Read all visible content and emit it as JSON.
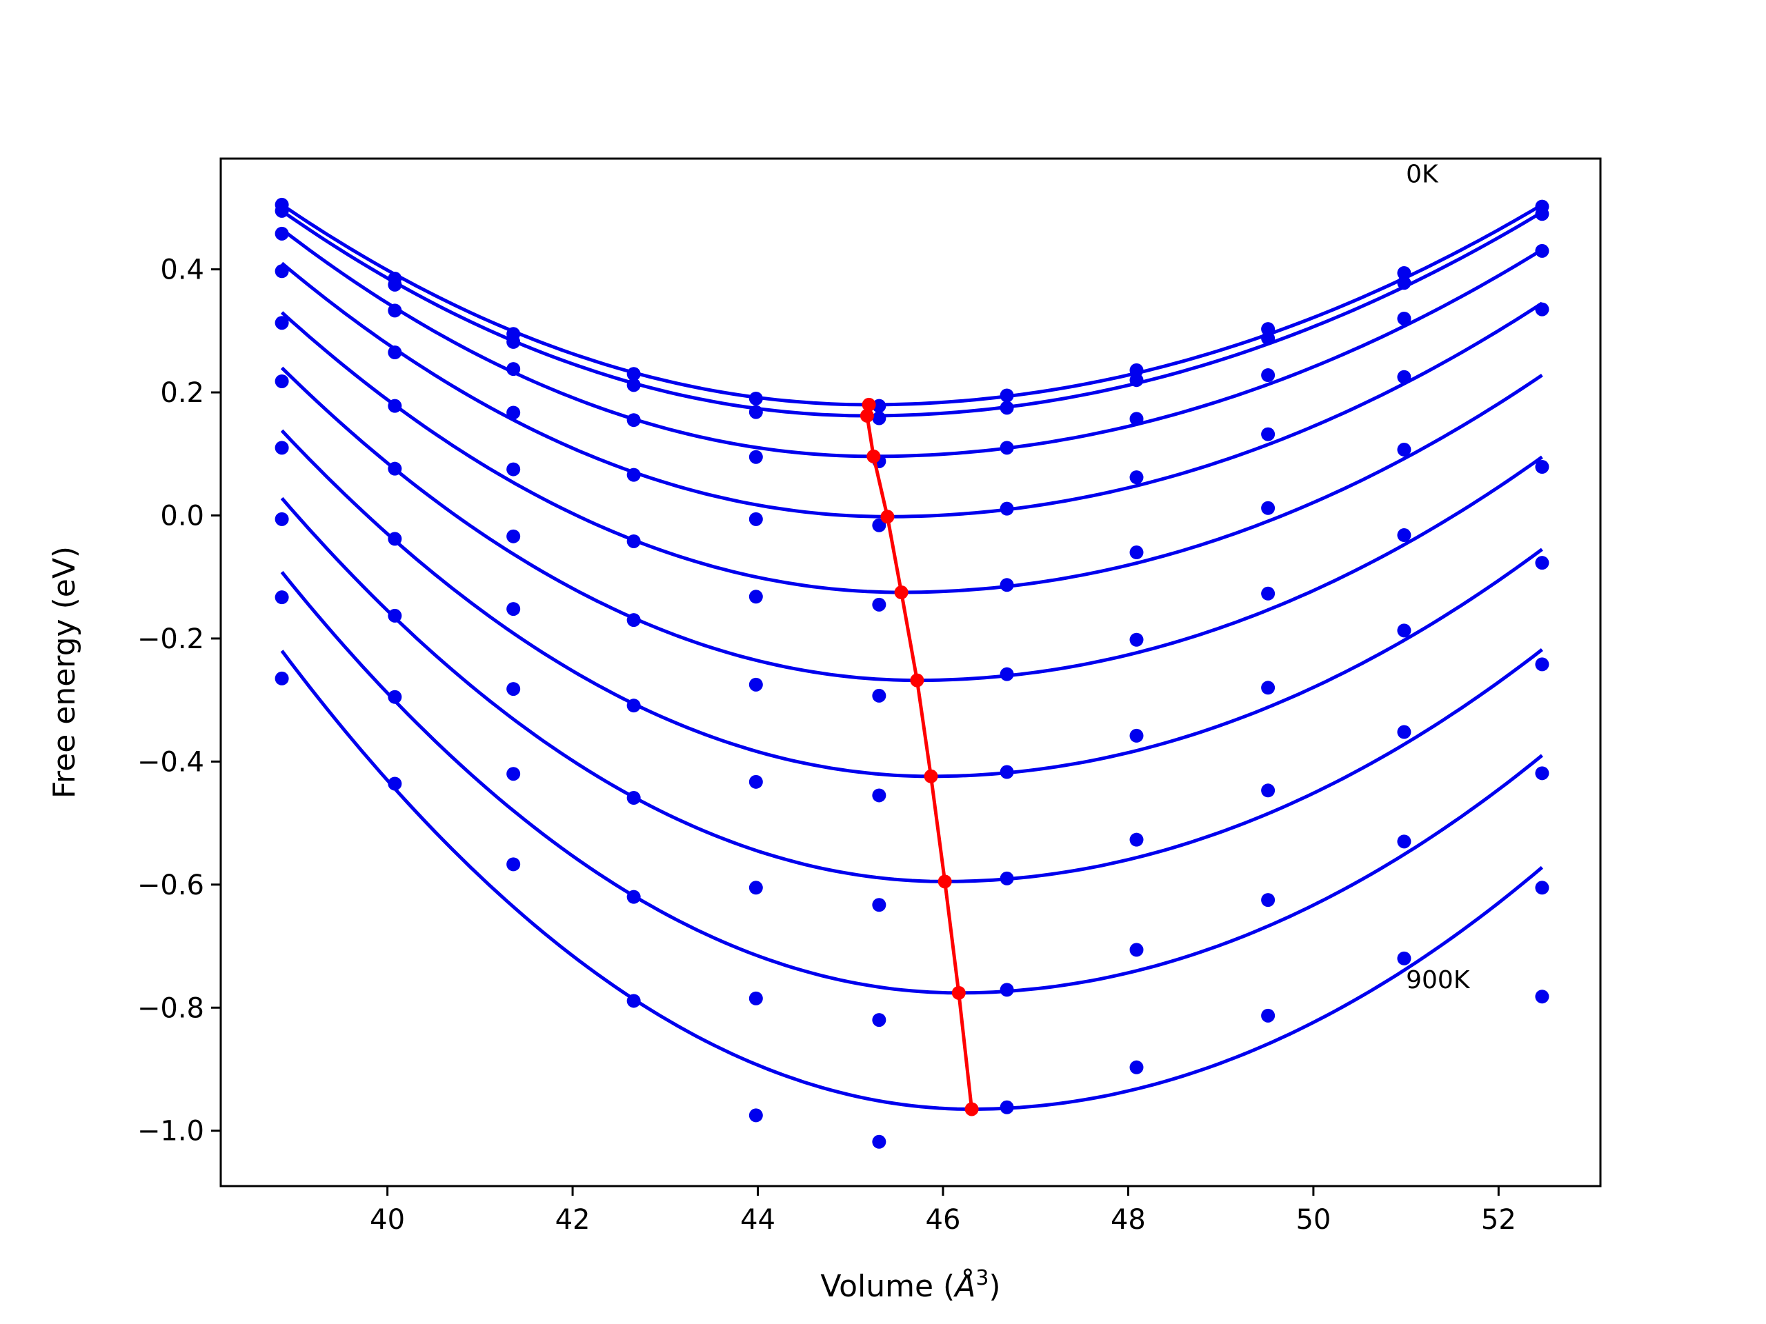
{
  "chart_data": {
    "type": "scatter",
    "title": "",
    "xlabel_prefix": "Volume (",
    "xlabel_unit": "Å",
    "xlabel_sup": "3",
    "xlabel_suffix": ")",
    "ylabel": "Free energy (eV)",
    "xlim": [
      38.2,
      53.1
    ],
    "ylim": [
      -1.09,
      0.58
    ],
    "x_ticks": [
      40,
      42,
      44,
      46,
      48,
      50,
      52
    ],
    "y_ticks": [
      -1.0,
      -0.8,
      -0.6,
      -0.4,
      -0.2,
      0.0,
      0.2,
      0.4
    ],
    "y_tick_labels": [
      "−1.0",
      "−0.8",
      "−0.6",
      "−0.4",
      "−0.2",
      "0.0",
      "0.2",
      "0.4"
    ],
    "grid": false,
    "annotations": [
      {
        "text": "0K",
        "x": 51.0,
        "y": 0.555
      },
      {
        "text": "900K",
        "x": 51.0,
        "y": -0.755
      }
    ],
    "volumes": [
      38.86,
      40.08,
      41.36,
      42.66,
      43.98,
      45.31,
      46.69,
      48.09,
      49.51,
      50.98,
      52.47
    ],
    "curve_color": "#0000ee",
    "point_color": "#0000ee",
    "minimum_color": "#ff0000",
    "series": [
      {
        "points": [
          0.505,
          0.385,
          0.295,
          0.23,
          0.19,
          0.178,
          0.195,
          0.236,
          0.303,
          0.394,
          0.502
        ],
        "min_v": 45.2,
        "min_e": 0.18,
        "curve_left": 0.505,
        "curve_right": 0.505
      },
      {
        "points": [
          0.495,
          0.375,
          0.282,
          0.212,
          0.168,
          0.158,
          0.175,
          0.22,
          0.288,
          0.378,
          0.49
        ],
        "min_v": 45.18,
        "min_e": 0.162,
        "curve_left": 0.495,
        "curve_right": 0.493
      },
      {
        "points": [
          0.458,
          0.333,
          0.238,
          0.155,
          0.095,
          0.088,
          0.11,
          0.157,
          0.228,
          0.32,
          0.43
        ],
        "min_v": 45.25,
        "min_e": 0.096,
        "curve_left": 0.465,
        "curve_right": 0.432
      },
      {
        "points": [
          0.397,
          0.265,
          0.167,
          0.066,
          -0.006,
          -0.016,
          0.011,
          0.062,
          0.132,
          0.225,
          0.335
        ],
        "min_v": 45.4,
        "min_e": -0.002,
        "curve_left": 0.41,
        "curve_right": 0.345
      },
      {
        "points": [
          0.313,
          0.178,
          0.075,
          -0.042,
          -0.132,
          -0.145,
          -0.113,
          -0.06,
          0.012,
          0.107,
          0.079
        ],
        "min_v": 45.55,
        "min_e": -0.125,
        "curve_left": 0.33,
        "curve_right": 0.228
      },
      {
        "points": [
          0.218,
          0.076,
          -0.034,
          -0.17,
          -0.275,
          -0.293,
          -0.258,
          -0.202,
          -0.127,
          -0.032,
          -0.077
        ],
        "min_v": 45.72,
        "min_e": -0.268,
        "curve_left": 0.24,
        "curve_right": 0.095
      },
      {
        "points": [
          0.11,
          -0.038,
          -0.152,
          -0.309,
          -0.433,
          -0.455,
          -0.417,
          -0.358,
          -0.28,
          -0.187,
          -0.242
        ],
        "min_v": 45.87,
        "min_e": -0.424,
        "curve_left": 0.138,
        "curve_right": -0.055
      },
      {
        "points": [
          -0.006,
          -0.163,
          -0.282,
          -0.459,
          -0.605,
          -0.633,
          -0.59,
          -0.527,
          -0.447,
          -0.352,
          -0.419
        ],
        "min_v": 46.02,
        "min_e": -0.595,
        "curve_left": 0.028,
        "curve_right": -0.218
      },
      {
        "points": [
          -0.133,
          -0.295,
          -0.42,
          -0.62,
          -0.785,
          -0.82,
          -0.771,
          -0.706,
          -0.625,
          -0.53,
          -0.605
        ],
        "min_v": 46.17,
        "min_e": -0.776,
        "curve_left": -0.092,
        "curve_right": -0.39
      },
      {
        "points": [
          -0.265,
          -0.436,
          -0.567,
          -0.789,
          -0.975,
          -1.018,
          -0.962,
          -0.897,
          -0.813,
          -0.72,
          -0.782
        ],
        "min_v": 46.31,
        "min_e": -0.965,
        "curve_left": -0.22,
        "curve_right": -0.572
      }
    ]
  }
}
